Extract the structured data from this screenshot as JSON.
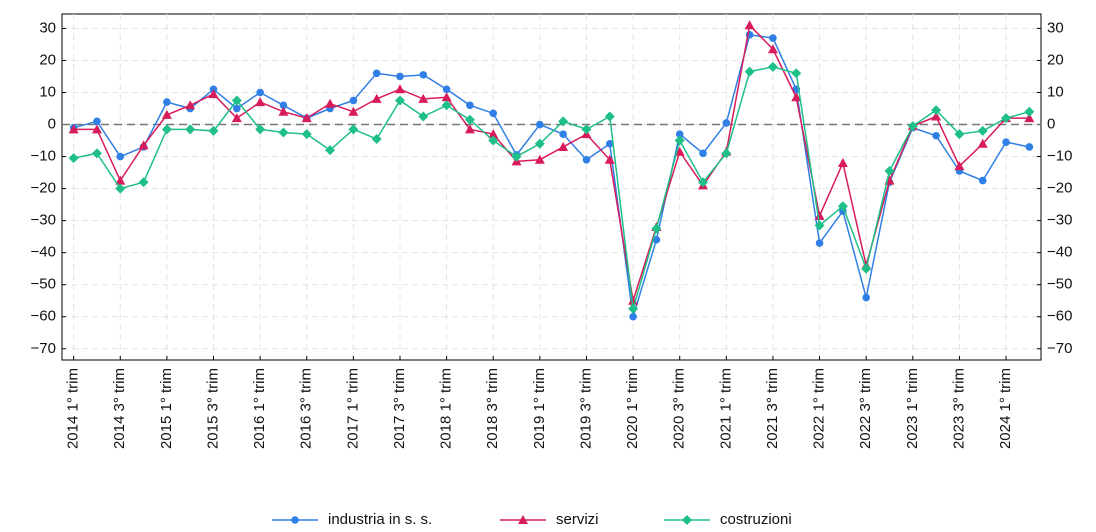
{
  "chart_data": {
    "type": "line",
    "categories": [
      "2014 1° trim",
      null,
      "2014 3° trim",
      null,
      "2015 1° trim",
      null,
      "2015 3° trim",
      null,
      "2016 1° trim",
      null,
      "2016 3° trim",
      null,
      "2017 1° trim",
      null,
      "2017 3° trim",
      null,
      "2018 1° trim",
      null,
      "2018 3° trim",
      null,
      "2019 1° trim",
      null,
      "2019 3° trim",
      null,
      "2020 1° trim",
      null,
      "2020 3° trim",
      null,
      "2021 1° trim",
      null,
      "2021 3° trim",
      null,
      "2022 1° trim",
      null,
      "2022 3° trim",
      null,
      "2023 1° trim",
      null,
      "2023 3° trim",
      null,
      "2024 1° trim",
      null
    ],
    "series": [
      {
        "name": "industria in s. s.",
        "color": "#2f7fe6",
        "marker": "circle",
        "values": [
          -1,
          1,
          -10,
          -7,
          7,
          5,
          11,
          5,
          10,
          6,
          2,
          5,
          7.5,
          16,
          15,
          15.5,
          11,
          6,
          3.5,
          -9.5,
          0,
          -3,
          -11,
          -6,
          -60,
          -36,
          -3,
          -9,
          0.5,
          28,
          27,
          11,
          -37,
          -27,
          -54,
          -18,
          -1,
          -3.5,
          -14.5,
          -17.5,
          -5.5,
          -7
        ]
      },
      {
        "name": "servizi",
        "color": "#d81b5a",
        "marker": "triangle",
        "values": [
          -1.5,
          -1.5,
          -17.5,
          -6.5,
          3,
          6,
          9.5,
          2,
          7,
          4,
          2,
          6.5,
          4,
          8,
          11,
          8,
          8.5,
          -1.5,
          -3,
          -11.5,
          -11,
          -7,
          -3,
          -11,
          -55,
          -32,
          -8.5,
          -19,
          -8.5,
          31,
          23.5,
          8.5,
          -28.5,
          -12,
          -44,
          -17.5,
          -0.5,
          2.5,
          -13,
          -6,
          2,
          2
        ]
      },
      {
        "name": "costruzioni",
        "color": "#1fbf88",
        "marker": "diamond",
        "values": [
          -10.5,
          -9,
          -20,
          -18,
          -1.5,
          -1.5,
          -2,
          7.5,
          -1.5,
          -2.5,
          -3,
          -8,
          -1.5,
          -4.5,
          7.5,
          2.5,
          6,
          1.5,
          -5,
          -10,
          -6,
          1,
          -1.5,
          2.5,
          -57.5,
          -32.5,
          -5,
          -18,
          -9,
          16.5,
          18,
          16,
          -31.5,
          -25.5,
          -45,
          -14.5,
          -0.5,
          4.5,
          -3,
          -2,
          2,
          4
        ]
      }
    ],
    "ylim": [
      -73.5,
      34.5
    ],
    "yticks": [
      {
        "value": -70,
        "label": "−70"
      },
      {
        "value": -60,
        "label": "−60"
      },
      {
        "value": -50,
        "label": "−50"
      },
      {
        "value": -40,
        "label": "−40"
      },
      {
        "value": -30,
        "label": "−30"
      },
      {
        "value": -20,
        "label": "−20"
      },
      {
        "value": -10,
        "label": "−10"
      },
      0,
      10,
      20,
      30
    ],
    "y2lim": [
      -73.5,
      34.5
    ],
    "y2ticks": [
      {
        "value": -70,
        "label": "−70"
      },
      {
        "value": -60,
        "label": "−60"
      },
      {
        "value": -50,
        "label": "−50"
      },
      {
        "value": -40,
        "label": "−40"
      },
      {
        "value": -30,
        "label": "−30"
      },
      {
        "value": -20,
        "label": "−20"
      },
      {
        "value": -10,
        "label": "−10"
      },
      0,
      10,
      20,
      30
    ],
    "grid": true,
    "legend": "bottom"
  }
}
